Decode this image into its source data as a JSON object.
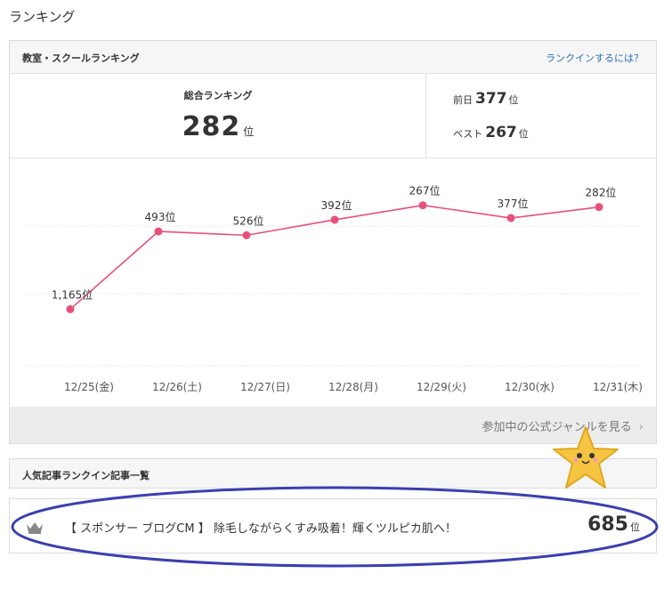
{
  "page": {
    "title": "ランキング"
  },
  "ranking_box": {
    "title": "教室・スクールランキング",
    "link": "ランクインするには？",
    "overall": {
      "label": "総合ランキング",
      "rank": "282",
      "unit": "位"
    },
    "previous": {
      "label": "前日",
      "rank": "377",
      "unit": "位"
    },
    "best": {
      "label": "ベスト",
      "rank": "267",
      "unit": "位"
    },
    "genre_link": "参加中の公式ジャンルを見る",
    "chevron": "›"
  },
  "chart_data": {
    "type": "line",
    "x": [
      "12/25(金)",
      "12/26(土)",
      "12/27(日)",
      "12/28(月)",
      "12/29(火)",
      "12/30(水)",
      "12/31(木)"
    ],
    "values": [
      1165,
      493,
      526,
      392,
      267,
      377,
      282
    ],
    "point_labels": [
      "1,165位",
      "493位",
      "526位",
      "392位",
      "267位",
      "377位",
      "282位"
    ],
    "y_axis_reversed": true,
    "ylim": [
      1400,
      200
    ],
    "grid": true,
    "line_color": "#e8507a"
  },
  "articles": {
    "title": "人気記事ランクイン記事一覧",
    "items": [
      {
        "text": "【 スポンサー ブログCM 】 除毛しながらくすみ吸着！輝くツルピカ肌へ！",
        "rank": "685",
        "unit": "位",
        "icon": "crown-icon"
      }
    ]
  },
  "colors": {
    "accent": "#e8507a",
    "link": "#2a6fb8",
    "annotation": "#3a3fb0",
    "star": "#f5c542"
  }
}
